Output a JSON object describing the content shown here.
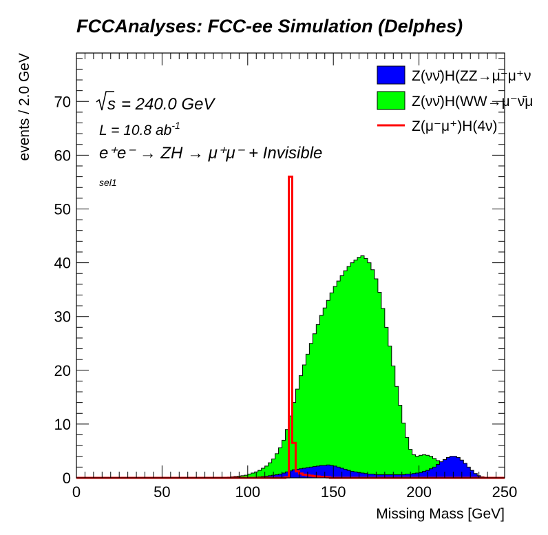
{
  "chart_data": {
    "type": "area",
    "title": "FCCAnalyses: FCC-ee Simulation (Delphes)",
    "xlabel": "Missing Mass [GeV]",
    "ylabel": "events / 2.0 GeV",
    "xlim": [
      0,
      250
    ],
    "ylim": [
      0,
      79
    ],
    "bin_width": 2,
    "x_ticks": [
      0,
      50,
      100,
      150,
      200,
      250
    ],
    "y_ticks": [
      0,
      10,
      20,
      30,
      40,
      50,
      60,
      70
    ],
    "annotations": {
      "sqrt_s": "= 240.0 GeV",
      "lumi": "L = 10.8 ab",
      "lumi_exp": "-1",
      "process": "e⁺e⁻ → ZH → μ⁺μ⁻ + Invisible",
      "selection": "sel1"
    },
    "legend_position": "top-right",
    "series": [
      {
        "name": "Z(νν̄)H(ZZ→μ⁻μ⁺ν",
        "color": "#0000ff",
        "style": "filled",
        "x_start": 100,
        "values": [
          0.1,
          0.1,
          0.15,
          0.2,
          0.25,
          0.3,
          0.4,
          0.5,
          0.6,
          0.7,
          0.9,
          1.1,
          1.3,
          1.5,
          1.6,
          1.7,
          1.8,
          1.9,
          2.0,
          2.1,
          2.2,
          2.3,
          2.3,
          2.4,
          2.3,
          2.2,
          2.0,
          1.8,
          1.6,
          1.4,
          1.2,
          1.1,
          1.0,
          0.9,
          0.8,
          0.7,
          0.7,
          0.6,
          0.6,
          0.6,
          0.6,
          0.6,
          0.6,
          0.6,
          0.6,
          0.6,
          0.7,
          0.7,
          0.8,
          0.9,
          1.0,
          1.2,
          1.4,
          1.7,
          2.0,
          2.5,
          3.0,
          3.4,
          3.8,
          4.0,
          4.0,
          3.8,
          3.3,
          2.7,
          2.0,
          1.4,
          0.8,
          0.4,
          0.2,
          0.1
        ]
      },
      {
        "name": "Z(νν̄)H(WW→μ⁻ν̄μ",
        "color": "#00ff00",
        "style": "filled",
        "x_start": 86,
        "values": [
          0.1,
          0.15,
          0.2,
          0.25,
          0.3,
          0.4,
          0.5,
          0.7,
          0.9,
          1.1,
          1.4,
          1.8,
          2.2,
          2.8,
          3.5,
          4.5,
          5.6,
          7.0,
          9.0,
          11.5,
          14.0,
          16.5,
          19.0,
          21.0,
          23.0,
          25.0,
          26.8,
          28.5,
          30.2,
          31.6,
          33.0,
          34.4,
          35.6,
          36.6,
          37.6,
          38.5,
          39.3,
          40.0,
          40.5,
          41.0,
          41.3,
          40.8,
          40.0,
          38.7,
          37.0,
          34.5,
          31.5,
          28.0,
          24.5,
          20.8,
          17.0,
          13.5,
          10.2,
          7.5,
          5.3,
          4.3,
          4.0,
          4.2,
          4.3,
          4.2,
          4.0,
          3.6,
          3.2,
          2.6,
          2.0,
          1.3,
          0.8,
          0.4
        ]
      },
      {
        "name": "Z(μ⁻μ⁺)H(4ν)",
        "color": "#ff0000",
        "style": "line",
        "x_start": 122,
        "values": [
          0.1,
          56.0,
          6.5,
          1.2,
          0.8,
          0.6,
          0.5,
          0.4,
          0.3,
          0.25,
          0.2,
          0.15,
          0.1
        ]
      }
    ]
  }
}
